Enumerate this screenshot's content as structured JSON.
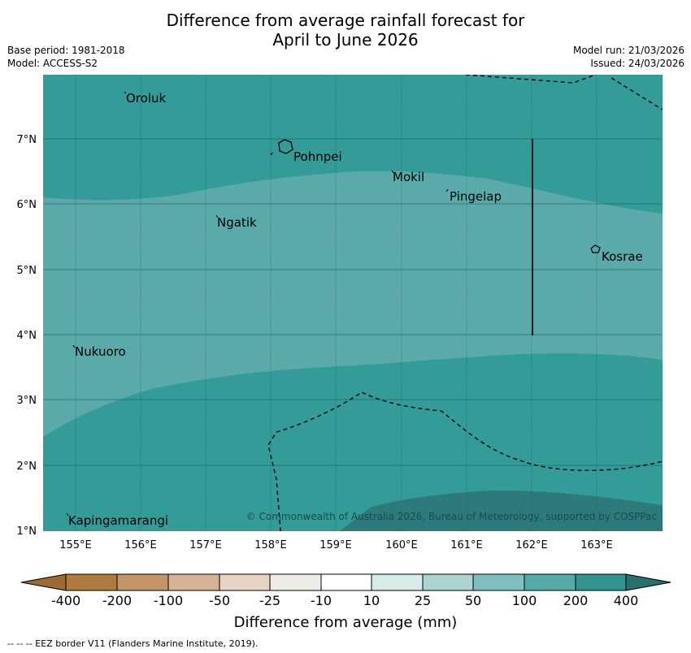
{
  "title_line1": "Difference from average rainfall forecast for",
  "title_line2": "April to June 2026",
  "base_period": "Base period: 1981-2018",
  "model": "Model: ACCESS-S2",
  "model_run": "Model run: 21/03/2026",
  "issued": "Issued: 24/03/2026",
  "places": {
    "oroluk": "Oroluk",
    "pohnpei": "Pohnpei",
    "mokil": "Mokil",
    "pingelap": "Pingelap",
    "ngatik": "Ngatik",
    "kosrae": "Kosrae",
    "nukuoro": "Nukuoro",
    "kapingamarangi": "Kapingamarangi"
  },
  "lon_ticks": [
    "155°E",
    "156°E",
    "157°E",
    "158°E",
    "159°E",
    "160°E",
    "161°E",
    "162°E",
    "163°E"
  ],
  "lat_ticks": [
    "7°N",
    "6°N",
    "5°N",
    "4°N",
    "3°N",
    "2°N",
    "1°N"
  ],
  "copyright": "© Commonwealth of Australia 2026, Bureau of Meteorology, supported by COSPPac",
  "colorbar": {
    "ticks": [
      "-400",
      "-200",
      "-100",
      "-50",
      "-25",
      "-10",
      "10",
      "25",
      "50",
      "100",
      "200",
      "400"
    ],
    "colors": [
      "#b07a3e",
      "#c39466",
      "#d5b394",
      "#e6d3c2",
      "#efebe6",
      "#ffffff",
      "#d6ecea",
      "#aad5d3",
      "#7dc0bd",
      "#53aaa6",
      "#31948f",
      "#297a77"
    ],
    "label": "Difference from average (mm)"
  },
  "map_colors": {
    "class_100_200": "#5aaaaa",
    "class_200_400": "#339b98",
    "class_over_400": "#2c7b7a"
  },
  "footer": "--  --  -- EEZ border V11 (Flanders Marine Institute, 2019)."
}
